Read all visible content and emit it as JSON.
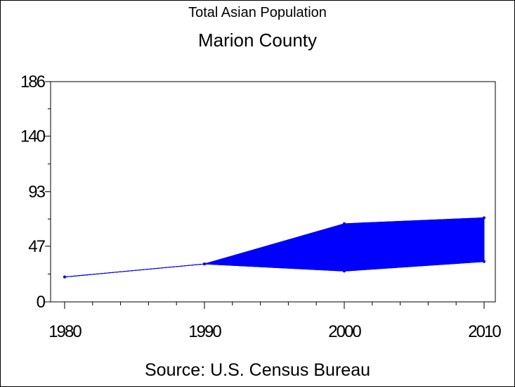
{
  "chart_data": {
    "type": "area",
    "title": "Total Asian Population",
    "subtitle": "Marion County",
    "source": "Source: U.S. Census Bureau",
    "x": [
      1980,
      1990,
      2000,
      2010
    ],
    "x_tick_labels": [
      "1980",
      "1990",
      "2000",
      "2010"
    ],
    "y_ticks": [
      0,
      47,
      93,
      140,
      186
    ],
    "y_tick_labels": [
      "0",
      "47",
      "93",
      "140",
      "186"
    ],
    "ylim": [
      0,
      186
    ],
    "xlim": [
      1980,
      2010
    ],
    "series": [
      {
        "values": [
          21,
          32,
          66,
          71
        ]
      },
      {
        "values": [
          21,
          32,
          26,
          34
        ]
      }
    ],
    "fill_between_series": true,
    "colors": {
      "series": "#0000ff",
      "axis": "#000000"
    }
  }
}
